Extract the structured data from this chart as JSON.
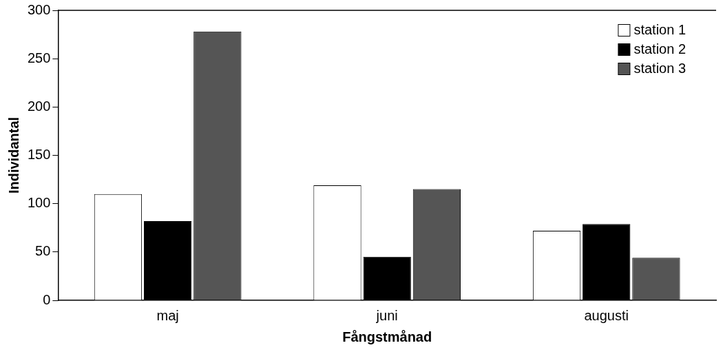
{
  "chart_data": {
    "type": "bar",
    "xlabel": "Fångstmånad",
    "ylabel": "Individantal",
    "categories": [
      "maj",
      "juni",
      "augusti"
    ],
    "series": [
      {
        "name": "station 1",
        "color": "#ffffff",
        "values": [
          110,
          119,
          72
        ]
      },
      {
        "name": "station 2",
        "color": "#000000",
        "values": [
          82,
          45,
          79
        ]
      },
      {
        "name": "station 3",
        "color": "#555555",
        "values": [
          278,
          115,
          44
        ]
      }
    ],
    "ylim": [
      0,
      300
    ],
    "yticks": [
      0,
      50,
      100,
      150,
      200,
      250,
      300
    ],
    "grid": false,
    "legend": "top right"
  }
}
